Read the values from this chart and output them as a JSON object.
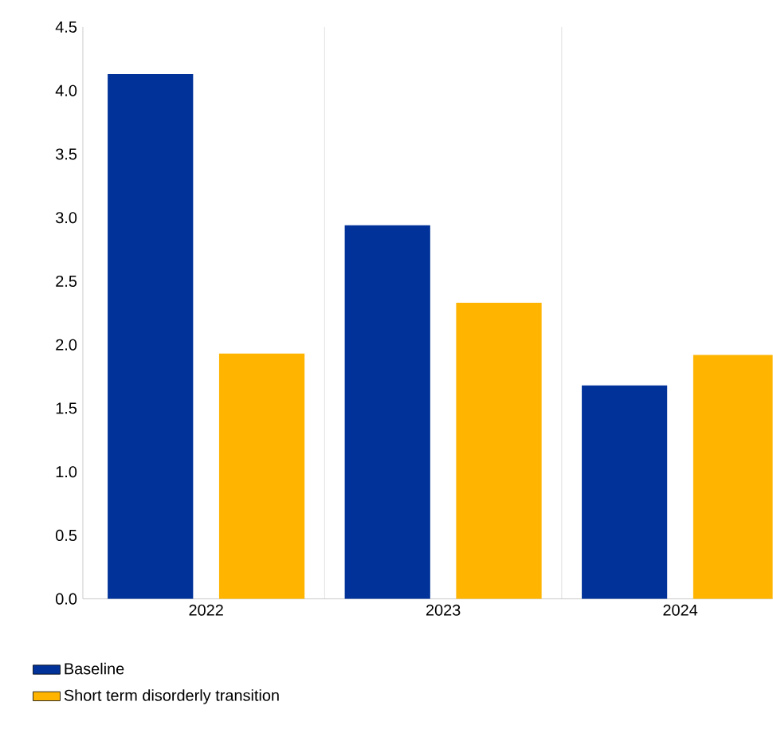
{
  "chart_data": {
    "type": "bar",
    "categories": [
      "2022",
      "2023",
      "2024"
    ],
    "series": [
      {
        "name": "Baseline",
        "color": "#003299",
        "values": [
          4.13,
          2.94,
          1.68
        ]
      },
      {
        "name": "Short term disorderly transition",
        "color": "#ffb400",
        "values": [
          1.93,
          2.33,
          1.92
        ]
      }
    ],
    "ylim": [
      0,
      4.5
    ],
    "yticks": [
      {
        "value": 0,
        "label": "0.0"
      },
      {
        "value": 0.5,
        "label": "0.5"
      },
      {
        "value": 1,
        "label": "1.0"
      },
      {
        "value": 1.5,
        "label": "1.5"
      },
      {
        "value": 2,
        "label": "2.0"
      },
      {
        "value": 2.5,
        "label": "2.5"
      },
      {
        "value": 3,
        "label": "3.0"
      },
      {
        "value": 3.5,
        "label": "3.5"
      },
      {
        "value": 4,
        "label": "4.0"
      },
      {
        "value": 4.5,
        "label": "4.5"
      }
    ],
    "grid": "x",
    "legend": "bottom"
  }
}
